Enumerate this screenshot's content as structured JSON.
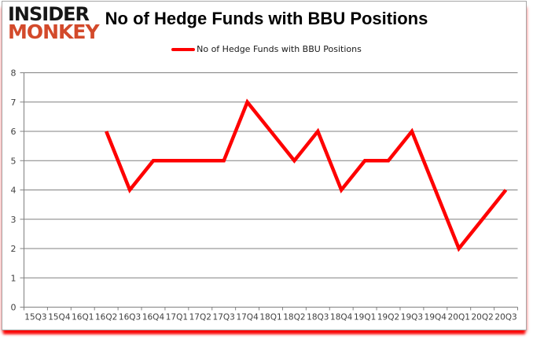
{
  "branding": {
    "line1": "INSIDER",
    "line2": "MONKEY"
  },
  "title": "No of Hedge Funds with BBU Positions",
  "legend": {
    "label": "No of Hedge Funds with BBU Positions"
  },
  "colors": {
    "series": "#fe0000",
    "logo_accent": "#d34a2b",
    "grid": "#808080",
    "axis_text": "#3f3f3f"
  },
  "chart_data": {
    "type": "line",
    "title": "No of Hedge Funds with BBU Positions",
    "categories": [
      "15Q3",
      "15Q4",
      "16Q1",
      "16Q2",
      "16Q3",
      "16Q4",
      "17Q1",
      "17Q2",
      "17Q3",
      "17Q4",
      "18Q1",
      "18Q2",
      "18Q3",
      "18Q4",
      "19Q1",
      "19Q2",
      "19Q3",
      "19Q4",
      "20Q1",
      "20Q2",
      "20Q3"
    ],
    "series": [
      {
        "name": "No of Hedge Funds with BBU Positions",
        "color": "#fe0000",
        "values": [
          null,
          null,
          null,
          6,
          4,
          5,
          5,
          5,
          5,
          7,
          6,
          5,
          6,
          4,
          5,
          5,
          6,
          4,
          2,
          3,
          4
        ]
      }
    ],
    "xlabel": "",
    "ylabel": "",
    "ylim": [
      0,
      8
    ],
    "ytick_step": 1,
    "grid": "horizontal",
    "legend_position": "top-center"
  }
}
